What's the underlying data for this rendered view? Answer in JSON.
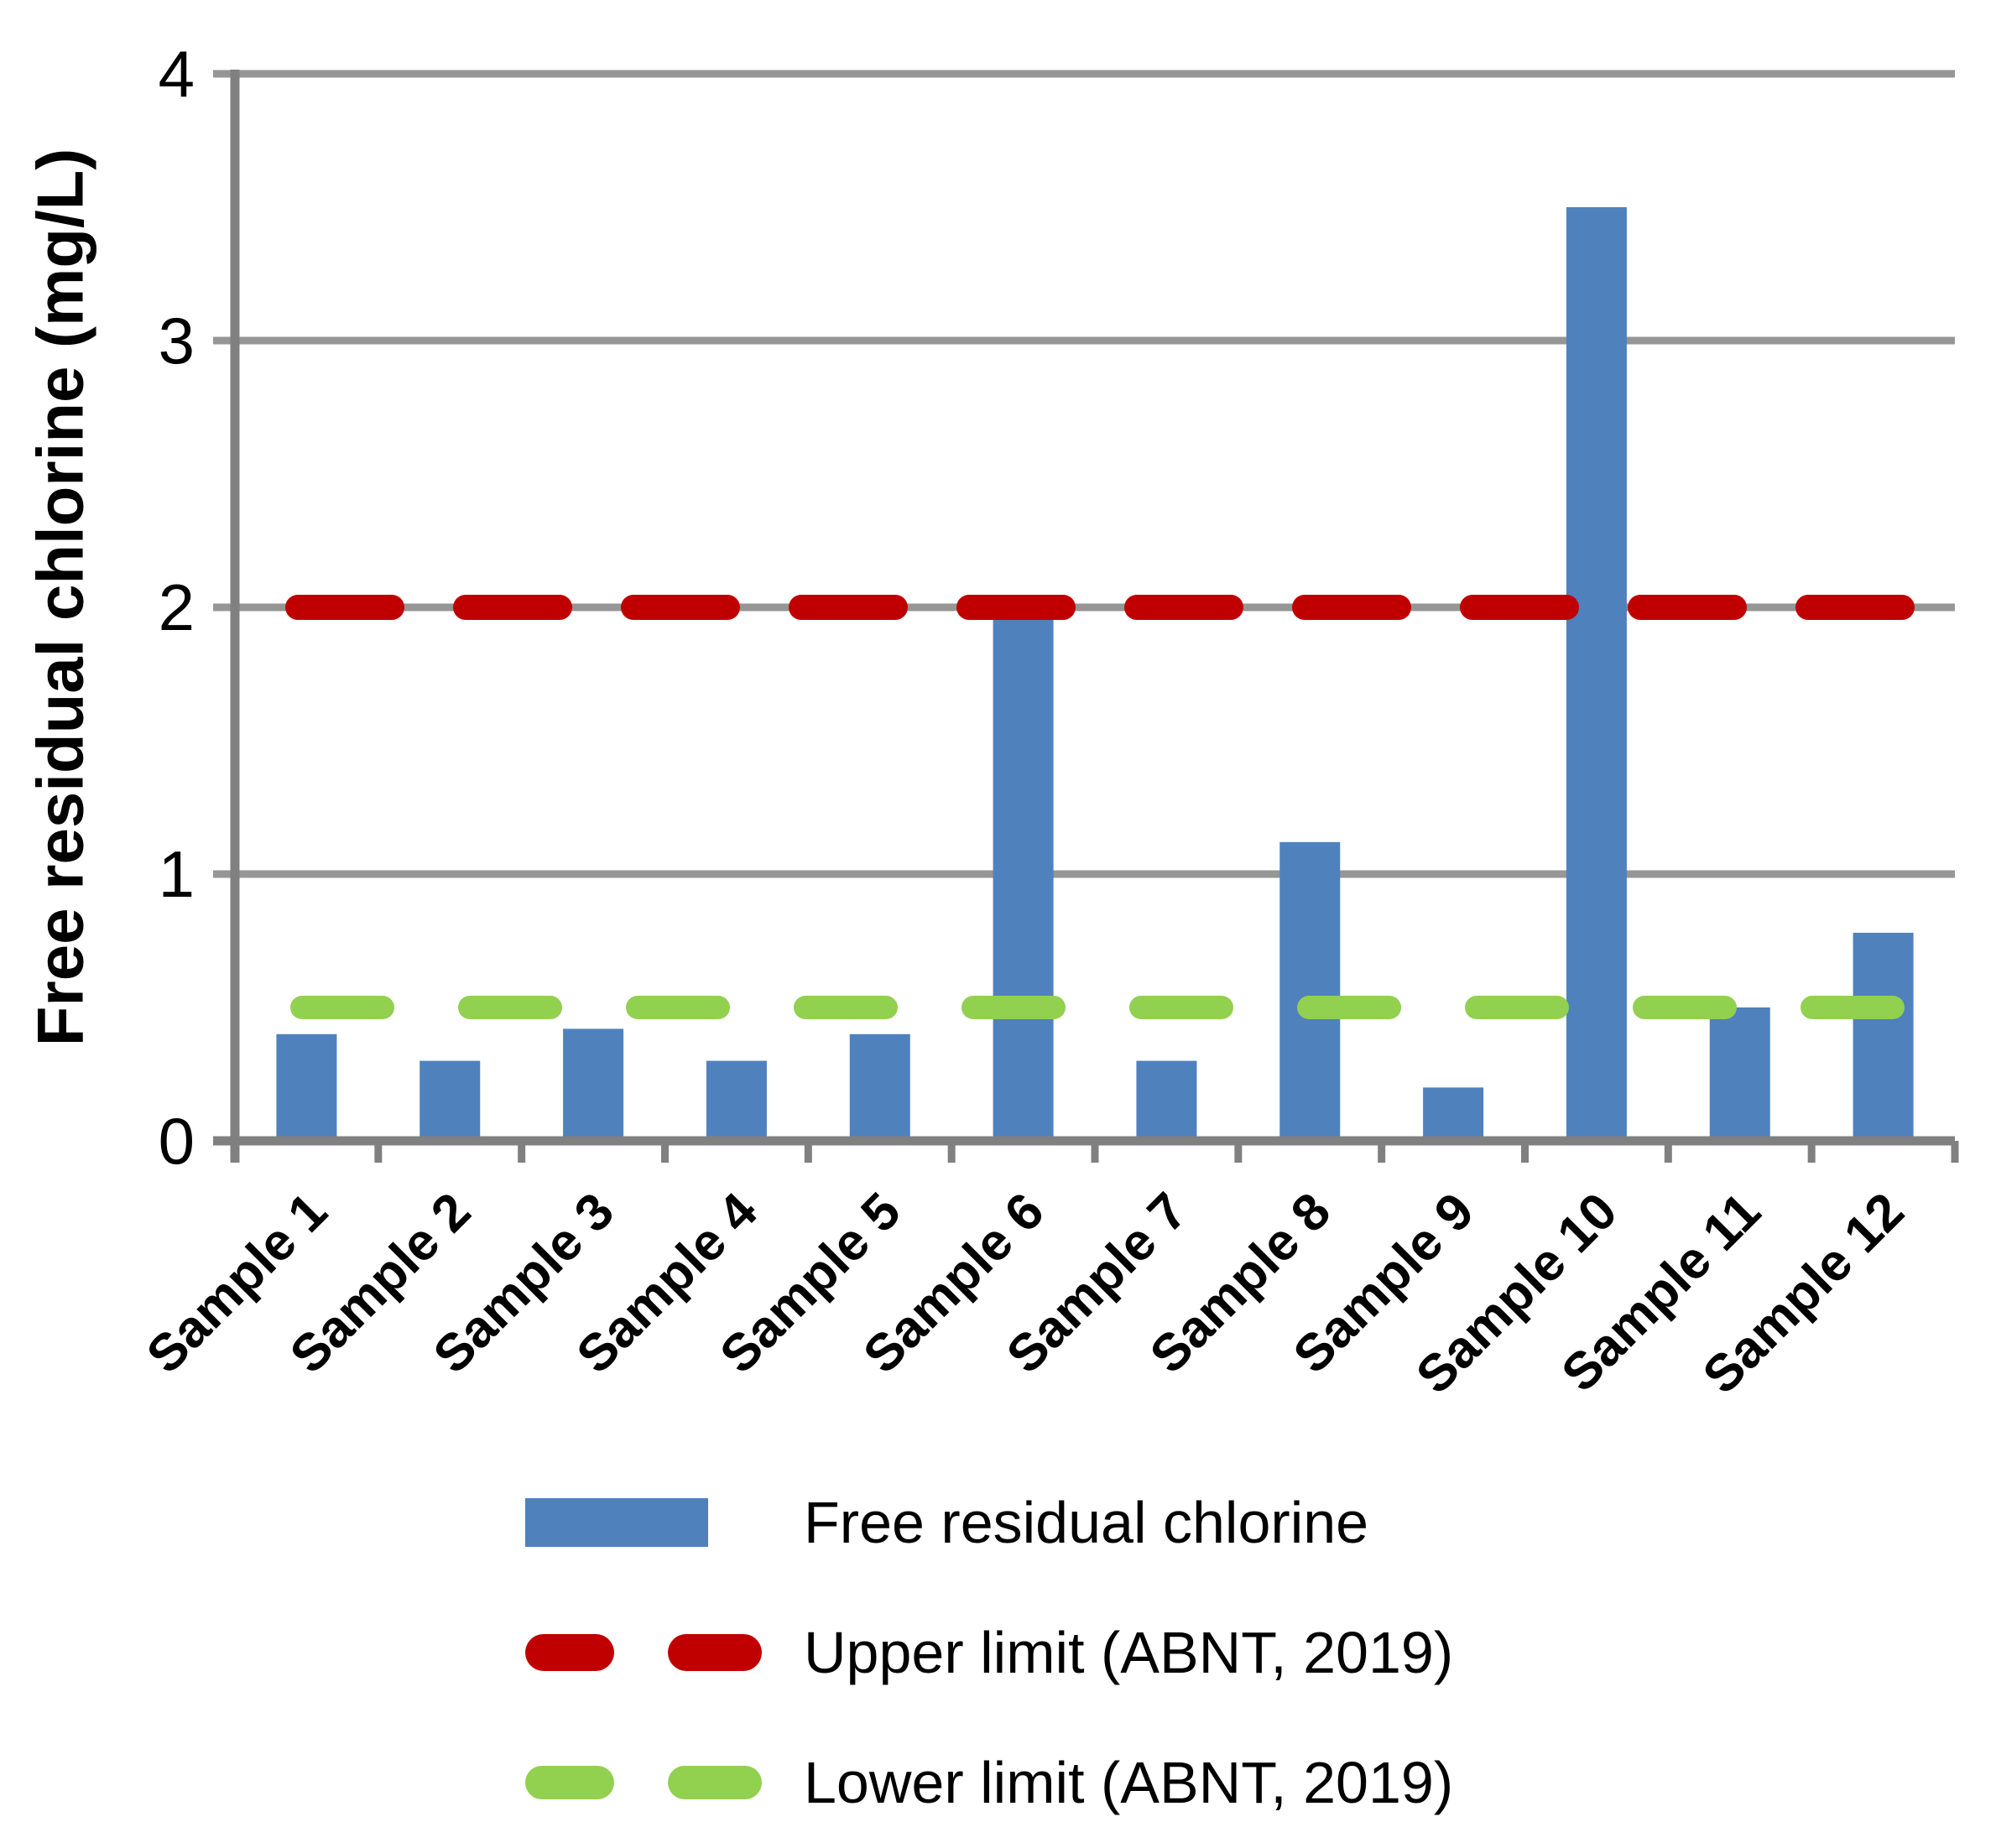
{
  "chart_data": {
    "type": "bar",
    "title": "",
    "ylabel": "Free residual chlorine (mg/L)",
    "xlabel": "",
    "ylim": [
      0,
      4
    ],
    "yticks": [
      0,
      1,
      2,
      3,
      4
    ],
    "grid": true,
    "legend_position": "bottom",
    "categories": [
      "Sample 1",
      "Sample 2",
      "Sample 3",
      "Sample 4",
      "Sample 5",
      "Sample 6",
      "Sample 7",
      "Sample 8",
      "Sample 9",
      "Sample 10",
      "Sample 11",
      "Sample 12"
    ],
    "series": [
      {
        "name": "Free residual chlorine",
        "color": "#4F81BD",
        "values": [
          0.4,
          0.3,
          0.42,
          0.3,
          0.4,
          1.98,
          0.3,
          1.12,
          0.2,
          3.5,
          0.5,
          0.78
        ]
      }
    ],
    "limit_lines": [
      {
        "name": "Upper limit (ABNT, 2019)",
        "value": 2,
        "color": "#C00000",
        "style": "dashed"
      },
      {
        "name": "Lower limit (ABNT, 2019)",
        "value": 0.5,
        "color": "#92D050",
        "style": "dashed"
      }
    ],
    "colors": {
      "bar": "#4F81BD",
      "upper_limit": "#C00000",
      "lower_limit": "#92D050",
      "gridline": "#969696",
      "axis": "#808080",
      "text": "#000000"
    }
  }
}
